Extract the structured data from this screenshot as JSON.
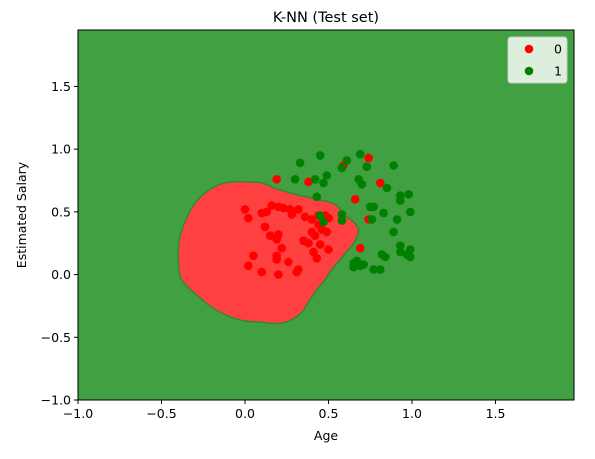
{
  "chart_data": {
    "type": "scatter",
    "title": "K-NN (Test set)",
    "xlabel": "Age",
    "ylabel": "Estimated Salary",
    "xlim": [
      -1.0,
      1.97
    ],
    "ylim": [
      -1.0,
      1.95
    ],
    "xticks": [
      -1.0,
      -0.5,
      0.0,
      0.5,
      1.0,
      1.5
    ],
    "xtick_labels": [
      "−1.0",
      "−0.5",
      "0.0",
      "0.5",
      "1.0",
      "1.5"
    ],
    "yticks": [
      -1.0,
      -0.5,
      0.0,
      0.5,
      1.0,
      1.5
    ],
    "ytick_labels": [
      "−1.0",
      "−0.5",
      "0.0",
      "0.5",
      "1.0",
      "1.5"
    ],
    "grid": false,
    "legend_position": "top-right",
    "background_region_color": "#41a041",
    "decision_region": {
      "label": "0",
      "color": "#ff4040",
      "boundary": [
        [
          0.0,
          0.74
        ],
        [
          0.1,
          0.73
        ],
        [
          0.2,
          0.68
        ],
        [
          0.3,
          0.64
        ],
        [
          0.4,
          0.61
        ],
        [
          0.5,
          0.58
        ],
        [
          0.55,
          0.55
        ],
        [
          0.6,
          0.47
        ],
        [
          0.65,
          0.42
        ],
        [
          0.68,
          0.36
        ],
        [
          0.66,
          0.27
        ],
        [
          0.62,
          0.2
        ],
        [
          0.57,
          0.12
        ],
        [
          0.52,
          0.04
        ],
        [
          0.48,
          -0.04
        ],
        [
          0.43,
          -0.12
        ],
        [
          0.38,
          -0.22
        ],
        [
          0.34,
          -0.3
        ],
        [
          0.28,
          -0.36
        ],
        [
          0.2,
          -0.39
        ],
        [
          0.1,
          -0.38
        ],
        [
          0.0,
          -0.37
        ],
        [
          -0.1,
          -0.33
        ],
        [
          -0.2,
          -0.26
        ],
        [
          -0.3,
          -0.15
        ],
        [
          -0.38,
          -0.04
        ],
        [
          -0.4,
          0.12
        ],
        [
          -0.39,
          0.3
        ],
        [
          -0.35,
          0.45
        ],
        [
          -0.3,
          0.57
        ],
        [
          -0.23,
          0.66
        ],
        [
          -0.15,
          0.72
        ],
        [
          -0.07,
          0.74
        ]
      ]
    },
    "series": [
      {
        "name": "0",
        "color": "#ff0000",
        "points": [
          [
            0.19,
            0.76
          ],
          [
            0.38,
            0.74
          ],
          [
            0.74,
            0.93
          ],
          [
            0.59,
            0.87
          ],
          [
            0.81,
            0.73
          ],
          [
            0.66,
            0.6
          ],
          [
            0.74,
            0.44
          ],
          [
            0.69,
            0.21
          ],
          [
            0.0,
            0.52
          ],
          [
            0.02,
            0.45
          ],
          [
            0.1,
            0.49
          ],
          [
            0.13,
            0.5
          ],
          [
            0.16,
            0.55
          ],
          [
            0.2,
            0.54
          ],
          [
            0.23,
            0.53
          ],
          [
            0.27,
            0.52
          ],
          [
            0.28,
            0.48
          ],
          [
            0.32,
            0.52
          ],
          [
            0.36,
            0.46
          ],
          [
            0.4,
            0.44
          ],
          [
            0.44,
            0.47
          ],
          [
            0.48,
            0.47
          ],
          [
            0.5,
            0.45
          ],
          [
            0.12,
            0.38
          ],
          [
            0.15,
            0.31
          ],
          [
            0.2,
            0.32
          ],
          [
            0.19,
            0.28
          ],
          [
            0.22,
            0.21
          ],
          [
            0.35,
            0.27
          ],
          [
            0.38,
            0.25
          ],
          [
            0.4,
            0.34
          ],
          [
            0.42,
            0.31
          ],
          [
            0.44,
            0.4
          ],
          [
            0.46,
            0.36
          ],
          [
            0.49,
            0.34
          ],
          [
            0.5,
            0.2
          ],
          [
            0.45,
            0.24
          ],
          [
            0.41,
            0.18
          ],
          [
            0.02,
            0.07
          ],
          [
            0.05,
            0.15
          ],
          [
            0.1,
            0.02
          ],
          [
            0.19,
            0.15
          ],
          [
            0.19,
            0.12
          ],
          [
            0.2,
            0.0
          ],
          [
            0.26,
            0.1
          ],
          [
            0.31,
            0.02
          ],
          [
            0.32,
            0.04
          ],
          [
            0.43,
            0.13
          ]
        ]
      },
      {
        "name": "1",
        "color": "#008000",
        "points": [
          [
            0.33,
            0.89
          ],
          [
            0.45,
            0.95
          ],
          [
            0.42,
            0.76
          ],
          [
            0.47,
            0.73
          ],
          [
            0.49,
            0.79
          ],
          [
            0.3,
            0.76
          ],
          [
            0.43,
            0.62
          ],
          [
            0.58,
            0.85
          ],
          [
            0.61,
            0.91
          ],
          [
            0.69,
            0.96
          ],
          [
            0.73,
            0.86
          ],
          [
            0.68,
            0.76
          ],
          [
            0.7,
            0.72
          ],
          [
            0.85,
            0.69
          ],
          [
            0.89,
            0.87
          ],
          [
            0.93,
            0.63
          ],
          [
            0.93,
            0.59
          ],
          [
            0.98,
            0.64
          ],
          [
            0.99,
            0.5
          ],
          [
            0.91,
            0.44
          ],
          [
            0.89,
            0.34
          ],
          [
            0.93,
            0.23
          ],
          [
            0.93,
            0.18
          ],
          [
            0.97,
            0.16
          ],
          [
            0.99,
            0.2
          ],
          [
            0.99,
            0.14
          ],
          [
            0.82,
            0.16
          ],
          [
            0.84,
            0.14
          ],
          [
            0.81,
            0.04
          ],
          [
            0.77,
            0.04
          ],
          [
            0.75,
            0.54
          ],
          [
            0.77,
            0.54
          ],
          [
            0.83,
            0.49
          ],
          [
            0.76,
            0.44
          ],
          [
            0.58,
            0.48
          ],
          [
            0.58,
            0.43
          ],
          [
            0.45,
            0.47
          ],
          [
            0.47,
            0.42
          ],
          [
            0.65,
            0.06
          ],
          [
            0.65,
            0.09
          ],
          [
            0.67,
            0.11
          ],
          [
            0.69,
            0.07
          ],
          [
            0.71,
            0.08
          ]
        ]
      }
    ]
  }
}
